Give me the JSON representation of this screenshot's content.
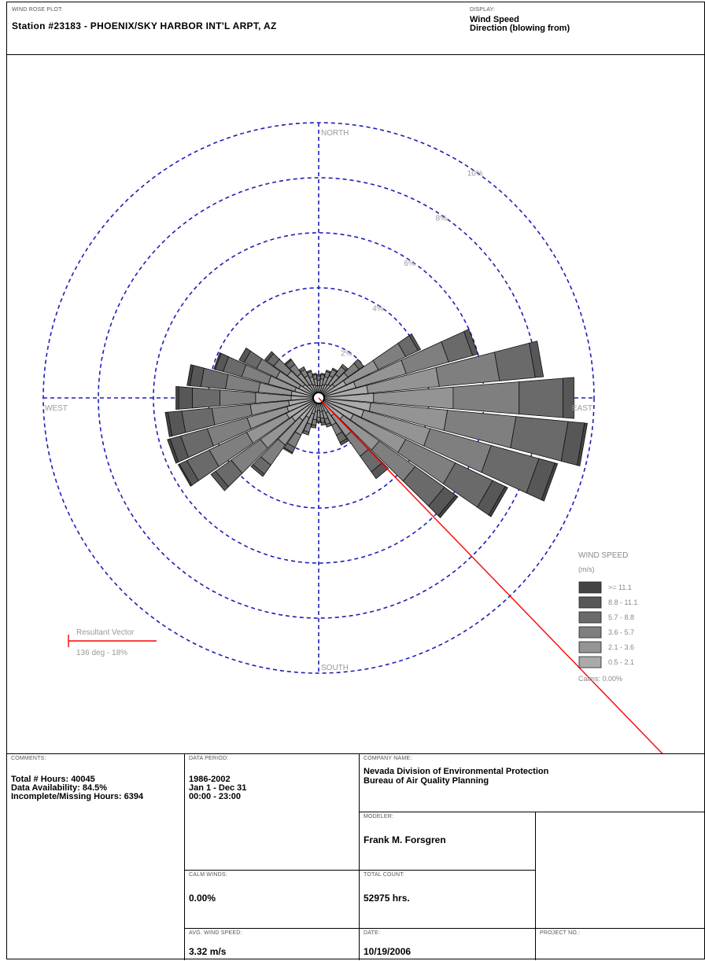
{
  "header": {
    "plot_label": "WIND ROSE PLOT:",
    "station": "Station #23183 - PHOENIX/SKY HARBOR INT'L ARPT, AZ",
    "display_label": "DISPLAY:",
    "display_line1": "Wind Speed",
    "display_line2": "Direction (blowing from)"
  },
  "chart_data": {
    "type": "wind-rose",
    "directions": [
      0,
      10,
      20,
      30,
      40,
      50,
      60,
      70,
      80,
      90,
      100,
      110,
      120,
      130,
      140,
      150,
      160,
      170,
      180,
      190,
      200,
      210,
      220,
      230,
      240,
      250,
      260,
      270,
      280,
      290,
      300,
      310,
      320,
      330,
      340,
      350
    ],
    "speed_bins": [
      {
        "name": ">= 11.1",
        "color": "#444444"
      },
      {
        "name": "8.8 - 11.1",
        "color": "#575757"
      },
      {
        "name": "5.7 - 8.8",
        "color": "#6a6a6a"
      },
      {
        "name": "3.6 - 5.7",
        "color": "#7f7f7f"
      },
      {
        "name": "2.1 - 3.6",
        "color": "#949494"
      },
      {
        "name": "0.5 - 2.1",
        "color": "#aaaaaa"
      }
    ],
    "frequency_percent": [
      [
        0.0,
        0.0,
        0.05,
        0.15,
        0.2,
        0.25
      ],
      [
        0.0,
        0.0,
        0.05,
        0.15,
        0.25,
        0.25
      ],
      [
        0.0,
        0.0,
        0.05,
        0.2,
        0.3,
        0.3
      ],
      [
        0.0,
        0.0,
        0.05,
        0.25,
        0.35,
        0.35
      ],
      [
        0.0,
        0.0,
        0.1,
        0.35,
        0.45,
        0.4
      ],
      [
        0.0,
        0.0,
        0.2,
        0.5,
        0.6,
        0.5
      ],
      [
        0.0,
        0.1,
        0.5,
        1.1,
        1.3,
        0.9
      ],
      [
        0.0,
        0.2,
        0.9,
        1.6,
        1.9,
        1.2
      ],
      [
        0.0,
        0.3,
        1.3,
        2.2,
        2.6,
        1.6
      ],
      [
        0.0,
        0.4,
        1.6,
        2.4,
        2.9,
        1.8
      ],
      [
        0.1,
        0.6,
        1.9,
        2.5,
        2.8,
        1.7
      ],
      [
        0.1,
        0.6,
        1.8,
        2.3,
        2.5,
        1.5
      ],
      [
        0.1,
        0.5,
        1.5,
        2.0,
        2.1,
        1.2
      ],
      [
        0.1,
        0.5,
        1.3,
        1.6,
        1.6,
        0.9
      ],
      [
        0.0,
        0.3,
        0.7,
        0.9,
        0.9,
        0.6
      ],
      [
        0.0,
        0.1,
        0.3,
        0.4,
        0.5,
        0.4
      ],
      [
        0.0,
        0.0,
        0.1,
        0.2,
        0.3,
        0.3
      ],
      [
        0.0,
        0.0,
        0.1,
        0.15,
        0.25,
        0.3
      ],
      [
        0.0,
        0.0,
        0.05,
        0.15,
        0.25,
        0.25
      ],
      [
        0.0,
        0.0,
        0.1,
        0.2,
        0.3,
        0.3
      ],
      [
        0.0,
        0.0,
        0.1,
        0.3,
        0.4,
        0.4
      ],
      [
        0.0,
        0.05,
        0.2,
        0.5,
        0.7,
        0.6
      ],
      [
        0.0,
        0.1,
        0.4,
        0.9,
        1.1,
        0.8
      ],
      [
        0.0,
        0.2,
        0.7,
        1.3,
        1.4,
        1.0
      ],
      [
        0.05,
        0.3,
        0.9,
        1.5,
        1.6,
        1.1
      ],
      [
        0.1,
        0.4,
        1.0,
        1.5,
        1.5,
        1.0
      ],
      [
        0.1,
        0.5,
        1.1,
        1.4,
        1.4,
        0.9
      ],
      [
        0.1,
        0.5,
        1.0,
        1.3,
        1.3,
        0.8
      ],
      [
        0.1,
        0.4,
        0.9,
        1.2,
        1.2,
        0.8
      ],
      [
        0.05,
        0.3,
        0.7,
        1.0,
        1.0,
        0.7
      ],
      [
        0.0,
        0.2,
        0.5,
        0.8,
        0.9,
        0.6
      ],
      [
        0.0,
        0.1,
        0.3,
        0.6,
        0.7,
        0.5
      ],
      [
        0.0,
        0.05,
        0.2,
        0.4,
        0.5,
        0.4
      ],
      [
        0.0,
        0.0,
        0.1,
        0.25,
        0.35,
        0.35
      ],
      [
        0.0,
        0.0,
        0.05,
        0.2,
        0.3,
        0.3
      ],
      [
        0.0,
        0.0,
        0.05,
        0.15,
        0.25,
        0.25
      ]
    ],
    "rings_percent": [
      2,
      4,
      6,
      8,
      10
    ],
    "ring_labels": [
      "2%",
      "4%",
      "6%",
      "8%",
      "10%"
    ],
    "compass": {
      "north": "NORTH",
      "south": "SOUTH",
      "east": "EAST",
      "west": "WEST"
    },
    "resultant": {
      "direction_deg": 136,
      "percent": 18,
      "label": "Resultant Vector",
      "value_label": "136 deg - 18%",
      "color": "#ff0000"
    },
    "grid_color": "#1f1fb8",
    "legend": {
      "title": "WIND SPEED",
      "units": "(m/s)",
      "calms": "Calms: 0.00%",
      "position": "bottom-right"
    }
  },
  "footer": {
    "comments_label": "COMMENTS:",
    "comments": [
      "Total # Hours: 40045",
      "Data Availability: 84.5%",
      "Incomplete/Missing Hours: 6394"
    ],
    "period_label": "DATA PERIOD:",
    "period": [
      "1986-2002",
      "Jan 1 - Dec 31",
      "00:00 - 23:00"
    ],
    "company_label": "COMPANY NAME:",
    "company": [
      "Nevada Division of Environmental Protection",
      "Bureau of Air Quality Planning"
    ],
    "modeler_label": "MODELER:",
    "modeler": "Frank M. Forsgren",
    "calm_label": "CALM WINDS:",
    "calm": "0.00%",
    "total_label": "TOTAL COUNT:",
    "total": "52975 hrs.",
    "avg_label": "AVG. WIND SPEED:",
    "avg": "3.32 m/s",
    "date_label": "DATE:",
    "date": "10/19/2006",
    "project_label": "PROJECT NO.:"
  }
}
